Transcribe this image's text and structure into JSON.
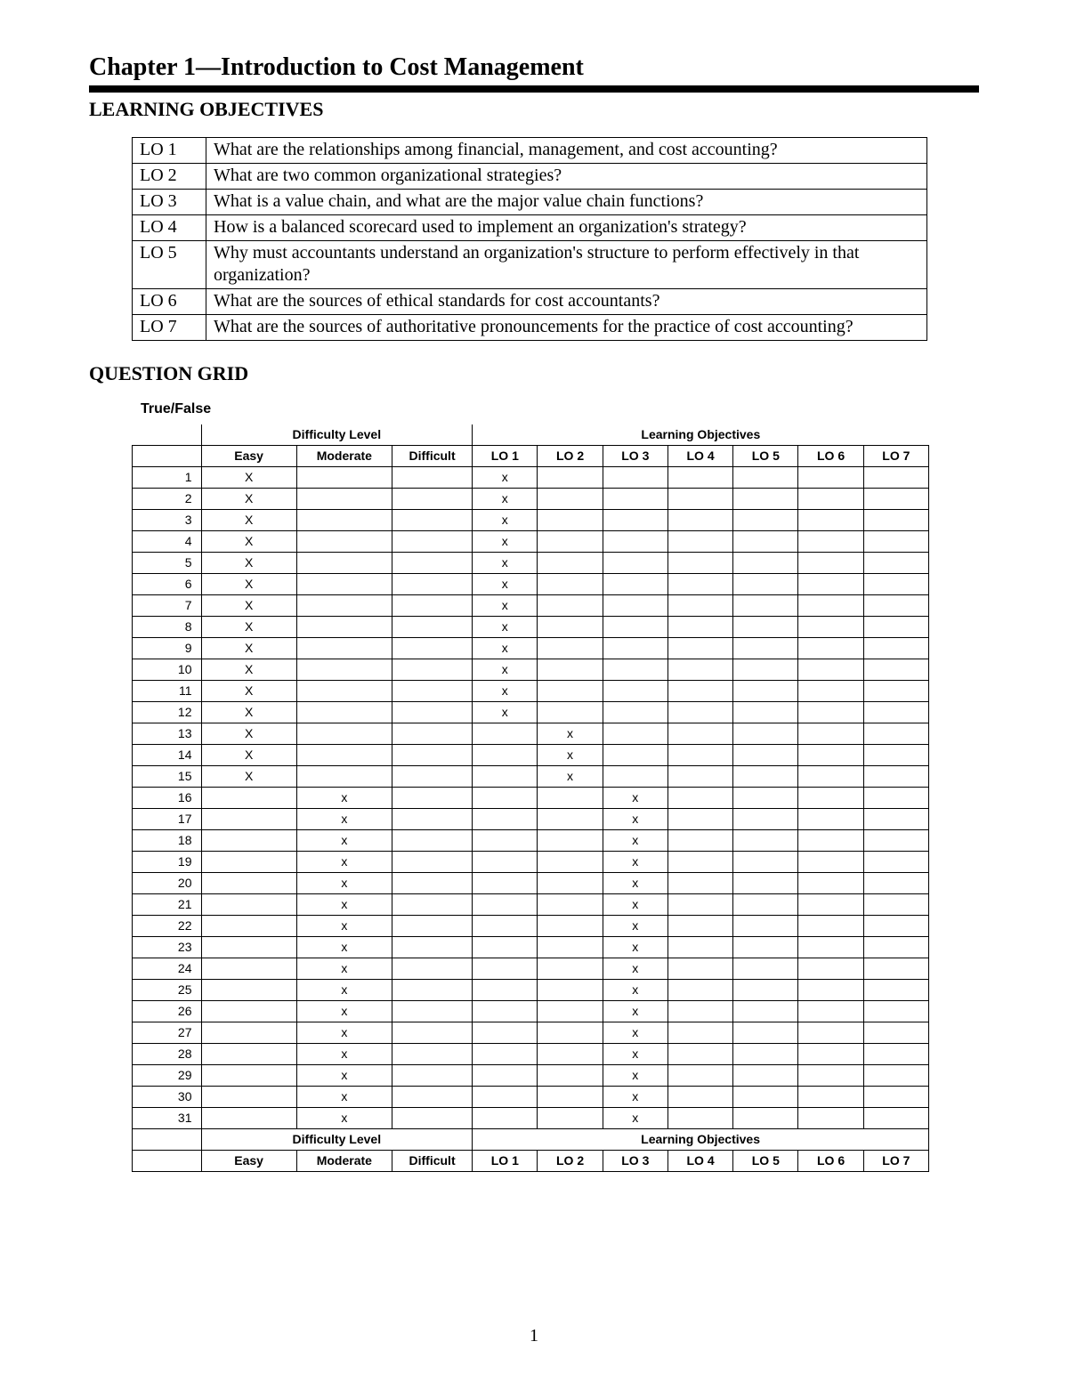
{
  "chapter_title": "Chapter 1—Introduction to Cost Management",
  "sections": {
    "learning_objectives_heading": "LEARNING OBJECTIVES",
    "question_grid_heading": "QUESTION GRID",
    "true_false_label": "True/False"
  },
  "learning_objectives": [
    {
      "code": "LO 1",
      "text": "What are the relationships among financial, management, and cost accounting?"
    },
    {
      "code": "LO 2",
      "text": "What are two common organizational strategies?"
    },
    {
      "code": "LO 3",
      "text": "What is a value chain, and what are the major value chain functions?"
    },
    {
      "code": "LO 4",
      "text": "How is a balanced scorecard used to implement an organization's strategy?"
    },
    {
      "code": "LO 5",
      "text": "Why must accountants understand an organization's structure to perform effectively in that organization?"
    },
    {
      "code": "LO 6",
      "text": "What are the sources of ethical standards for cost accountants?"
    },
    {
      "code": "LO 7",
      "text": "What are the sources of authoritative pronouncements for the practice of cost accounting?"
    }
  ],
  "grid": {
    "group_headers": {
      "difficulty": "Difficulty Level",
      "objectives": "Learning Objectives"
    },
    "col_headers": {
      "easy": "Easy",
      "moderate": "Moderate",
      "difficult": "Difficult",
      "lo1": "LO 1",
      "lo2": "LO 2",
      "lo3": "LO 3",
      "lo4": "LO 4",
      "lo5": "LO 5",
      "lo6": "LO 6",
      "lo7": "LO 7"
    },
    "mark_upper": "X",
    "mark_lower": "x",
    "rows": [
      {
        "n": 1,
        "easy": true,
        "moderate": false,
        "difficult": false,
        "lo": [
          true,
          false,
          false,
          false,
          false,
          false,
          false
        ]
      },
      {
        "n": 2,
        "easy": true,
        "moderate": false,
        "difficult": false,
        "lo": [
          true,
          false,
          false,
          false,
          false,
          false,
          false
        ]
      },
      {
        "n": 3,
        "easy": true,
        "moderate": false,
        "difficult": false,
        "lo": [
          true,
          false,
          false,
          false,
          false,
          false,
          false
        ]
      },
      {
        "n": 4,
        "easy": true,
        "moderate": false,
        "difficult": false,
        "lo": [
          true,
          false,
          false,
          false,
          false,
          false,
          false
        ]
      },
      {
        "n": 5,
        "easy": true,
        "moderate": false,
        "difficult": false,
        "lo": [
          true,
          false,
          false,
          false,
          false,
          false,
          false
        ]
      },
      {
        "n": 6,
        "easy": true,
        "moderate": false,
        "difficult": false,
        "lo": [
          true,
          false,
          false,
          false,
          false,
          false,
          false
        ]
      },
      {
        "n": 7,
        "easy": true,
        "moderate": false,
        "difficult": false,
        "lo": [
          true,
          false,
          false,
          false,
          false,
          false,
          false
        ]
      },
      {
        "n": 8,
        "easy": true,
        "moderate": false,
        "difficult": false,
        "lo": [
          true,
          false,
          false,
          false,
          false,
          false,
          false
        ]
      },
      {
        "n": 9,
        "easy": true,
        "moderate": false,
        "difficult": false,
        "lo": [
          true,
          false,
          false,
          false,
          false,
          false,
          false
        ]
      },
      {
        "n": 10,
        "easy": true,
        "moderate": false,
        "difficult": false,
        "lo": [
          true,
          false,
          false,
          false,
          false,
          false,
          false
        ]
      },
      {
        "n": 11,
        "easy": true,
        "moderate": false,
        "difficult": false,
        "lo": [
          true,
          false,
          false,
          false,
          false,
          false,
          false
        ]
      },
      {
        "n": 12,
        "easy": true,
        "moderate": false,
        "difficult": false,
        "lo": [
          true,
          false,
          false,
          false,
          false,
          false,
          false
        ]
      },
      {
        "n": 13,
        "easy": true,
        "moderate": false,
        "difficult": false,
        "lo": [
          false,
          true,
          false,
          false,
          false,
          false,
          false
        ]
      },
      {
        "n": 14,
        "easy": true,
        "moderate": false,
        "difficult": false,
        "lo": [
          false,
          true,
          false,
          false,
          false,
          false,
          false
        ]
      },
      {
        "n": 15,
        "easy": true,
        "moderate": false,
        "difficult": false,
        "lo": [
          false,
          true,
          false,
          false,
          false,
          false,
          false
        ]
      },
      {
        "n": 16,
        "easy": false,
        "moderate": true,
        "difficult": false,
        "lo": [
          false,
          false,
          true,
          false,
          false,
          false,
          false
        ]
      },
      {
        "n": 17,
        "easy": false,
        "moderate": true,
        "difficult": false,
        "lo": [
          false,
          false,
          true,
          false,
          false,
          false,
          false
        ]
      },
      {
        "n": 18,
        "easy": false,
        "moderate": true,
        "difficult": false,
        "lo": [
          false,
          false,
          true,
          false,
          false,
          false,
          false
        ]
      },
      {
        "n": 19,
        "easy": false,
        "moderate": true,
        "difficult": false,
        "lo": [
          false,
          false,
          true,
          false,
          false,
          false,
          false
        ]
      },
      {
        "n": 20,
        "easy": false,
        "moderate": true,
        "difficult": false,
        "lo": [
          false,
          false,
          true,
          false,
          false,
          false,
          false
        ]
      },
      {
        "n": 21,
        "easy": false,
        "moderate": true,
        "difficult": false,
        "lo": [
          false,
          false,
          true,
          false,
          false,
          false,
          false
        ]
      },
      {
        "n": 22,
        "easy": false,
        "moderate": true,
        "difficult": false,
        "lo": [
          false,
          false,
          true,
          false,
          false,
          false,
          false
        ]
      },
      {
        "n": 23,
        "easy": false,
        "moderate": true,
        "difficult": false,
        "lo": [
          false,
          false,
          true,
          false,
          false,
          false,
          false
        ]
      },
      {
        "n": 24,
        "easy": false,
        "moderate": true,
        "difficult": false,
        "lo": [
          false,
          false,
          true,
          false,
          false,
          false,
          false
        ]
      },
      {
        "n": 25,
        "easy": false,
        "moderate": true,
        "difficult": false,
        "lo": [
          false,
          false,
          true,
          false,
          false,
          false,
          false
        ]
      },
      {
        "n": 26,
        "easy": false,
        "moderate": true,
        "difficult": false,
        "lo": [
          false,
          false,
          true,
          false,
          false,
          false,
          false
        ]
      },
      {
        "n": 27,
        "easy": false,
        "moderate": true,
        "difficult": false,
        "lo": [
          false,
          false,
          true,
          false,
          false,
          false,
          false
        ]
      },
      {
        "n": 28,
        "easy": false,
        "moderate": true,
        "difficult": false,
        "lo": [
          false,
          false,
          true,
          false,
          false,
          false,
          false
        ]
      },
      {
        "n": 29,
        "easy": false,
        "moderate": true,
        "difficult": false,
        "lo": [
          false,
          false,
          true,
          false,
          false,
          false,
          false
        ]
      },
      {
        "n": 30,
        "easy": false,
        "moderate": true,
        "difficult": false,
        "lo": [
          false,
          false,
          true,
          false,
          false,
          false,
          false
        ]
      },
      {
        "n": 31,
        "easy": false,
        "moderate": true,
        "difficult": false,
        "lo": [
          false,
          false,
          true,
          false,
          false,
          false,
          false
        ]
      }
    ]
  },
  "page_number": "1",
  "colors": {
    "text": "#000000",
    "background": "#ffffff",
    "bar": "#000000",
    "border": "#000000"
  },
  "typography": {
    "body_family": "Times New Roman",
    "grid_family": "Arial",
    "chapter_title_pt": 21,
    "section_heading_pt": 17,
    "lo_text_pt": 15,
    "grid_text_pt": 10
  }
}
